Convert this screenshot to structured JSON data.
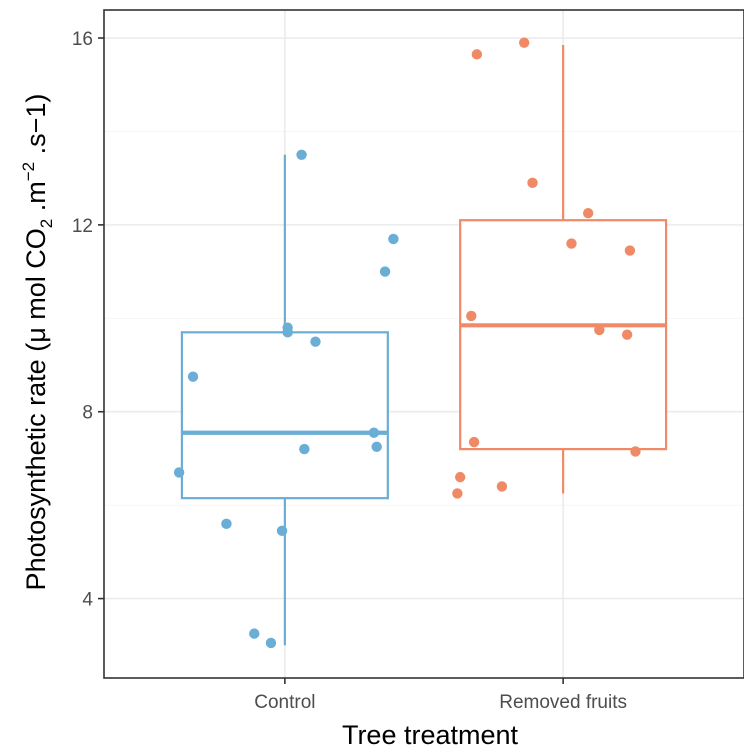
{
  "chart_data": {
    "type": "box",
    "xlabel": "Tree treatment",
    "ylabel": {
      "main": "Photosynthetic rate (",
      "mu": "μ",
      "mol": " mol CO",
      "sub2": "2",
      "m": " .m",
      "supneg2": "−2",
      "s": " .s",
      "minus1": "−1",
      "close": ")"
    },
    "ylim": [
      2.3,
      16.6
    ],
    "yticks": [
      4,
      8,
      12,
      16
    ],
    "ytick_labels": [
      "4",
      "8",
      "12",
      "16"
    ],
    "grid": true,
    "categories": [
      "Control",
      "Removed fruits"
    ],
    "colors": [
      "#6aaed6",
      "#f08a66"
    ],
    "boxes": [
      {
        "q1": 6.15,
        "median": 7.55,
        "q3": 9.7,
        "whisker_low": 3.0,
        "whisker_high": 13.5
      },
      {
        "q1": 7.2,
        "median": 9.85,
        "q3": 12.1,
        "whisker_low": 6.25,
        "whisker_high": 15.85
      }
    ],
    "points": [
      [
        {
          "x": -0.38,
          "y": 6.7
        },
        {
          "x": -0.33,
          "y": 8.75
        },
        {
          "x": -0.21,
          "y": 5.6
        },
        {
          "x": -0.11,
          "y": 3.25
        },
        {
          "x": -0.05,
          "y": 3.05
        },
        {
          "x": -0.01,
          "y": 5.45
        },
        {
          "x": 0.01,
          "y": 9.8
        },
        {
          "x": 0.01,
          "y": 9.7
        },
        {
          "x": 0.06,
          "y": 13.5
        },
        {
          "x": 0.07,
          "y": 7.2
        },
        {
          "x": 0.11,
          "y": 9.5
        },
        {
          "x": 0.32,
          "y": 7.55
        },
        {
          "x": 0.33,
          "y": 7.25
        },
        {
          "x": 0.36,
          "y": 11.0
        },
        {
          "x": 0.39,
          "y": 11.7
        }
      ],
      [
        {
          "x": -0.38,
          "y": 6.25
        },
        {
          "x": -0.37,
          "y": 6.6
        },
        {
          "x": -0.33,
          "y": 10.05
        },
        {
          "x": -0.32,
          "y": 7.35
        },
        {
          "x": -0.31,
          "y": 15.65
        },
        {
          "x": -0.22,
          "y": 6.4
        },
        {
          "x": -0.14,
          "y": 15.9
        },
        {
          "x": -0.11,
          "y": 12.9
        },
        {
          "x": 0.03,
          "y": 11.6
        },
        {
          "x": 0.09,
          "y": 12.25
        },
        {
          "x": 0.13,
          "y": 9.75
        },
        {
          "x": 0.23,
          "y": 9.65
        },
        {
          "x": 0.24,
          "y": 11.45
        },
        {
          "x": 0.26,
          "y": 7.15
        }
      ]
    ]
  }
}
